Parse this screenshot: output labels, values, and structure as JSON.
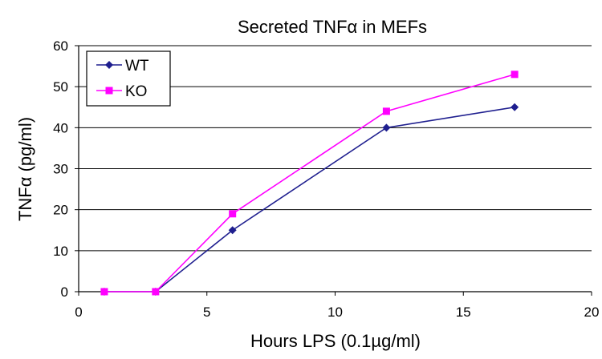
{
  "chart_data": {
    "type": "line",
    "title": "Secreted TNFα in MEFs",
    "xlabel": "Hours LPS (0.1µg/ml)",
    "ylabel": "TNFα (pg/ml)",
    "xlim": [
      0,
      20
    ],
    "ylim": [
      0,
      60
    ],
    "xticks": [
      0,
      5,
      10,
      15,
      20
    ],
    "yticks": [
      0,
      10,
      20,
      30,
      40,
      50,
      60
    ],
    "grid": "horizontal",
    "legend_position": "top-left",
    "series": [
      {
        "name": "WT",
        "color": "#1f1f8f",
        "marker": "diamond",
        "x": [
          1,
          3,
          6,
          12,
          17
        ],
        "y": [
          0,
          0,
          15,
          40,
          45
        ]
      },
      {
        "name": "KO",
        "color": "#ff00ff",
        "marker": "square",
        "x": [
          1,
          3,
          6,
          12,
          17
        ],
        "y": [
          0,
          0,
          19,
          44,
          53
        ]
      }
    ]
  }
}
